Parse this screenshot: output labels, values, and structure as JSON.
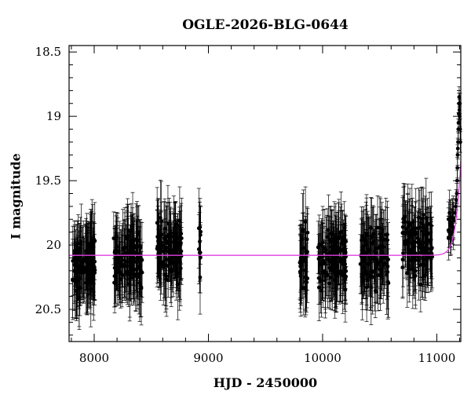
{
  "chart_data": {
    "type": "scatter",
    "title": "OGLE-2026-BLG-0644",
    "xlabel": "HJD - 2450000",
    "ylabel": "I magnitude",
    "xlim": [
      7780,
      11210
    ],
    "ylim": [
      20.75,
      18.45
    ],
    "y_inverted": true,
    "xticks": [
      8000,
      9000,
      10000,
      11000
    ],
    "xtick_labels": [
      "8000",
      "9000",
      "10000",
      "11000"
    ],
    "yticks": [
      18.5,
      19,
      19.5,
      20,
      20.5
    ],
    "ytick_labels": [
      "18.5",
      "19",
      "19.5",
      "20",
      "20.5"
    ],
    "grid": false,
    "colors": {
      "data": "#000000",
      "model": "#e040e0"
    },
    "series": [
      {
        "kind": "points_with_errorbars",
        "seasons": [
          {
            "x_start": 7810,
            "x_end": 8010,
            "mean_mag": 20.15,
            "scatter": 0.2,
            "err": 0.25,
            "n": 110
          },
          {
            "x_start": 8170,
            "x_end": 8420,
            "mean_mag": 20.12,
            "scatter": 0.2,
            "err": 0.25,
            "n": 130
          },
          {
            "x_start": 8550,
            "x_end": 8770,
            "mean_mag": 20.05,
            "scatter": 0.2,
            "err": 0.25,
            "n": 110
          },
          {
            "x_start": 8915,
            "x_end": 8935,
            "mean_mag": 20.0,
            "scatter": 0.2,
            "err": 0.25,
            "n": 10
          },
          {
            "x_start": 9800,
            "x_end": 9870,
            "mean_mag": 20.1,
            "scatter": 0.25,
            "err": 0.25,
            "n": 40
          },
          {
            "x_start": 9960,
            "x_end": 10210,
            "mean_mag": 20.1,
            "scatter": 0.22,
            "err": 0.25,
            "n": 130
          },
          {
            "x_start": 10330,
            "x_end": 10580,
            "mean_mag": 20.1,
            "scatter": 0.2,
            "err": 0.25,
            "n": 110
          },
          {
            "x_start": 10700,
            "x_end": 10960,
            "mean_mag": 20.0,
            "scatter": 0.2,
            "err": 0.25,
            "n": 130
          },
          {
            "x_start": 11100,
            "x_end": 11150,
            "mean_mag": 19.85,
            "scatter": 0.12,
            "err": 0.15,
            "n": 18
          }
        ],
        "rise_points": [
          {
            "x": 11160,
            "y": 19.75
          },
          {
            "x": 11165,
            "y": 19.7
          },
          {
            "x": 11170,
            "y": 19.65
          },
          {
            "x": 11175,
            "y": 19.6
          },
          {
            "x": 11178,
            "y": 19.5
          },
          {
            "x": 11180,
            "y": 19.4
          },
          {
            "x": 11182,
            "y": 19.3
          },
          {
            "x": 11184,
            "y": 19.25
          },
          {
            "x": 11186,
            "y": 19.2
          },
          {
            "x": 11188,
            "y": 19.1
          },
          {
            "x": 11190,
            "y": 19.05
          },
          {
            "x": 11192,
            "y": 18.98
          },
          {
            "x": 11194,
            "y": 18.9
          },
          {
            "x": 11196,
            "y": 18.85
          },
          {
            "x": 11198,
            "y": 18.95
          },
          {
            "x": 11200,
            "y": 19.0
          },
          {
            "x": 11202,
            "y": 18.9
          },
          {
            "x": 11204,
            "y": 19.1
          },
          {
            "x": 11206,
            "y": 19.2
          }
        ]
      },
      {
        "kind": "model_curve",
        "baseline": 20.08,
        "t0": 11260,
        "rise_scale": 35,
        "x_start": 7780,
        "x_end": 11210
      }
    ]
  }
}
